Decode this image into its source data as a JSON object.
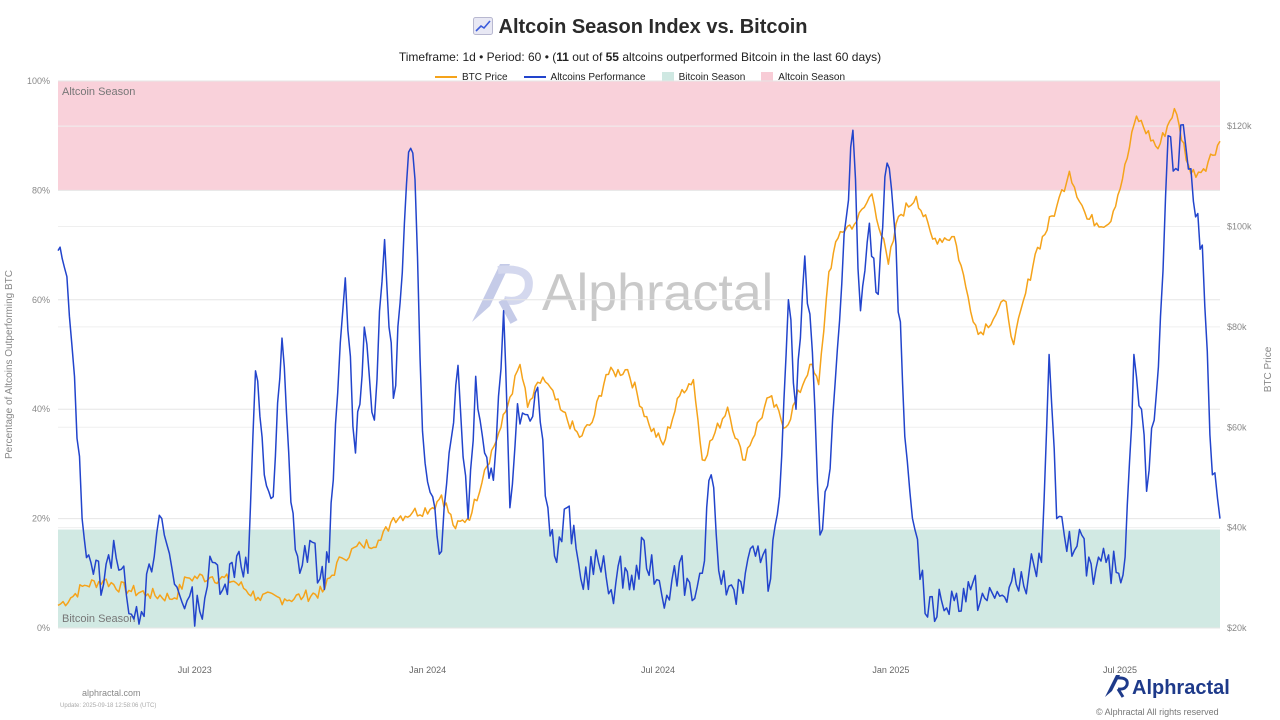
{
  "header": {
    "title": "Altcoin Season Index vs. Bitcoin",
    "subtitle_pre": "Timeframe: 1d  •  Period: 60  •  (",
    "outperformed": "11",
    "subtitle_mid": " out of ",
    "total": "55",
    "subtitle_post": " altcoins outperformed Bitcoin in the last 60 days)"
  },
  "legend": [
    {
      "label": "BTC Price",
      "kind": "line",
      "color": "#f5a31a"
    },
    {
      "label": "Altcoins Performance",
      "kind": "line",
      "color": "#2244cc"
    },
    {
      "label": "Bitcoin Season",
      "kind": "box",
      "color": "#cfe8e2"
    },
    {
      "label": "Altcoin Season",
      "kind": "box",
      "color": "#f8ccd6"
    }
  ],
  "zones": {
    "altcoin_label": "Altcoin Season",
    "bitcoin_label": "Bitcoin Season"
  },
  "footer": {
    "site": "alphractal.com",
    "update": "Update: 2025-09-18 12:58:06 (UTC)",
    "brand": "Alphractal",
    "copyright": "© Alphractal All rights reserved",
    "watermark": "Alphractal"
  },
  "colors": {
    "btc": "#f5a31a",
    "alts": "#2244cc",
    "alt_zone": "#f8ccd6",
    "btc_zone": "#cfe8e2",
    "brand": "#1e3a8a"
  },
  "chart_data": {
    "type": "line",
    "ylabel_left": "Percentage of Altcoins Outperforming BTC",
    "ylabel_right": "BTC Price",
    "y_left_range": [
      0,
      100
    ],
    "y_left_ticks": [
      "0%",
      "20%",
      "40%",
      "60%",
      "80%",
      "100%"
    ],
    "y_right_range": [
      20000,
      129000
    ],
    "y_right_ticks": [
      "$20k",
      "$40k",
      "$60k",
      "$80k",
      "$100k",
      "$120k"
    ],
    "x_range": [
      "2023-03-15",
      "2025-09-18"
    ],
    "x_ticks": [
      {
        "date": "2023-07-01",
        "label": "Jul 2023"
      },
      {
        "date": "2024-01-01",
        "label": "Jan 2024"
      },
      {
        "date": "2024-07-01",
        "label": "Jul 2024"
      },
      {
        "date": "2025-01-01",
        "label": "Jan 2025"
      },
      {
        "date": "2025-07-01",
        "label": "Jul 2025"
      }
    ],
    "bitcoin_season_max": 18,
    "altcoin_season_min": 80,
    "series": [
      {
        "name": "BTC Price",
        "axis": "right",
        "points": [
          [
            "2023-03-15",
            24500
          ],
          [
            "2023-03-25",
            26000
          ],
          [
            "2023-04-05",
            28500
          ],
          [
            "2023-04-20",
            29500
          ],
          [
            "2023-05-10",
            27500
          ],
          [
            "2023-05-25",
            26800
          ],
          [
            "2023-06-15",
            26000
          ],
          [
            "2023-06-25",
            30000
          ],
          [
            "2023-07-15",
            30200
          ],
          [
            "2023-08-01",
            29300
          ],
          [
            "2023-08-20",
            26100
          ],
          [
            "2023-09-10",
            25800
          ],
          [
            "2023-09-25",
            26300
          ],
          [
            "2023-10-10",
            27200
          ],
          [
            "2023-10-25",
            34000
          ],
          [
            "2023-11-10",
            36500
          ],
          [
            "2023-11-25",
            37500
          ],
          [
            "2023-12-05",
            42000
          ],
          [
            "2023-12-20",
            43000
          ],
          [
            "2024-01-05",
            44000
          ],
          [
            "2024-01-12",
            46500
          ],
          [
            "2024-01-23",
            39800
          ],
          [
            "2024-02-05",
            43000
          ],
          [
            "2024-02-15",
            51500
          ],
          [
            "2024-02-28",
            60000
          ],
          [
            "2024-03-06",
            66000
          ],
          [
            "2024-03-14",
            72500
          ],
          [
            "2024-03-20",
            64000
          ],
          [
            "2024-04-01",
            70000
          ],
          [
            "2024-04-15",
            63500
          ],
          [
            "2024-04-30",
            58000
          ],
          [
            "2024-05-10",
            61000
          ],
          [
            "2024-05-21",
            70500
          ],
          [
            "2024-06-07",
            71500
          ],
          [
            "2024-06-24",
            60500
          ],
          [
            "2024-07-05",
            56500
          ],
          [
            "2024-07-20",
            67500
          ],
          [
            "2024-07-29",
            69500
          ],
          [
            "2024-08-05",
            53500
          ],
          [
            "2024-08-25",
            64000
          ],
          [
            "2024-09-06",
            53500
          ],
          [
            "2024-09-27",
            66000
          ],
          [
            "2024-10-10",
            60000
          ],
          [
            "2024-10-29",
            72500
          ],
          [
            "2024-11-05",
            68500
          ],
          [
            "2024-11-13",
            91000
          ],
          [
            "2024-11-22",
            99000
          ],
          [
            "2024-12-05",
            101000
          ],
          [
            "2024-12-17",
            106500
          ],
          [
            "2024-12-30",
            92500
          ],
          [
            "2025-01-07",
            102000
          ],
          [
            "2025-01-21",
            106000
          ],
          [
            "2025-02-03",
            97500
          ],
          [
            "2025-02-20",
            98000
          ],
          [
            "2025-03-03",
            86000
          ],
          [
            "2025-03-11",
            78500
          ],
          [
            "2025-04-02",
            85000
          ],
          [
            "2025-04-08",
            76500
          ],
          [
            "2025-04-25",
            94500
          ],
          [
            "2025-05-12",
            104000
          ],
          [
            "2025-05-22",
            111000
          ],
          [
            "2025-06-05",
            101500
          ],
          [
            "2025-06-22",
            100500
          ],
          [
            "2025-07-03",
            109500
          ],
          [
            "2025-07-14",
            122000
          ],
          [
            "2025-07-31",
            115500
          ],
          [
            "2025-08-13",
            123500
          ],
          [
            "2025-08-26",
            110500
          ],
          [
            "2025-09-05",
            111500
          ],
          [
            "2025-09-18",
            117000
          ]
        ]
      },
      {
        "name": "Altcoins Performance",
        "axis": "left",
        "points": [
          [
            "2023-03-15",
            69
          ],
          [
            "2023-03-20",
            66
          ],
          [
            "2023-03-24",
            57
          ],
          [
            "2023-03-28",
            46
          ],
          [
            "2023-04-03",
            20
          ],
          [
            "2023-04-10",
            12
          ],
          [
            "2023-04-20",
            8
          ],
          [
            "2023-04-28",
            16
          ],
          [
            "2023-05-08",
            6
          ],
          [
            "2023-05-20",
            3
          ],
          [
            "2023-05-30",
            13
          ],
          [
            "2023-06-05",
            20
          ],
          [
            "2023-06-15",
            8
          ],
          [
            "2023-06-25",
            5
          ],
          [
            "2023-07-05",
            3
          ],
          [
            "2023-07-15",
            12
          ],
          [
            "2023-07-25",
            8
          ],
          [
            "2023-08-05",
            14
          ],
          [
            "2023-08-12",
            10
          ],
          [
            "2023-08-18",
            47
          ],
          [
            "2023-08-25",
            28
          ],
          [
            "2023-09-01",
            24
          ],
          [
            "2023-09-08",
            53
          ],
          [
            "2023-09-15",
            23
          ],
          [
            "2023-09-22",
            10
          ],
          [
            "2023-09-30",
            16
          ],
          [
            "2023-10-08",
            9
          ],
          [
            "2023-10-15",
            12
          ],
          [
            "2023-10-22",
            43
          ],
          [
            "2023-10-28",
            64
          ],
          [
            "2023-11-05",
            32
          ],
          [
            "2023-11-12",
            55
          ],
          [
            "2023-11-20",
            38
          ],
          [
            "2023-11-28",
            71
          ],
          [
            "2023-12-05",
            42
          ],
          [
            "2023-12-12",
            65
          ],
          [
            "2023-12-17",
            87
          ],
          [
            "2023-12-22",
            82
          ],
          [
            "2023-12-28",
            36
          ],
          [
            "2024-01-05",
            24
          ],
          [
            "2024-01-12",
            14
          ],
          [
            "2024-01-18",
            32
          ],
          [
            "2024-01-25",
            48
          ],
          [
            "2024-02-02",
            20
          ],
          [
            "2024-02-08",
            46
          ],
          [
            "2024-02-15",
            32
          ],
          [
            "2024-02-22",
            27
          ],
          [
            "2024-03-01",
            58
          ],
          [
            "2024-03-06",
            22
          ],
          [
            "2024-03-12",
            41
          ],
          [
            "2024-03-20",
            39
          ],
          [
            "2024-03-28",
            44
          ],
          [
            "2024-04-05",
            22
          ],
          [
            "2024-04-12",
            12
          ],
          [
            "2024-04-20",
            22
          ],
          [
            "2024-05-01",
            9
          ],
          [
            "2024-05-15",
            12
          ],
          [
            "2024-05-25",
            7
          ],
          [
            "2024-06-05",
            11
          ],
          [
            "2024-06-12",
            7
          ],
          [
            "2024-06-20",
            16
          ],
          [
            "2024-06-28",
            8
          ],
          [
            "2024-07-08",
            6
          ],
          [
            "2024-07-18",
            12
          ],
          [
            "2024-07-28",
            5
          ],
          [
            "2024-08-05",
            10
          ],
          [
            "2024-08-12",
            28
          ],
          [
            "2024-08-20",
            8
          ],
          [
            "2024-08-30",
            7
          ],
          [
            "2024-09-08",
            10
          ],
          [
            "2024-09-18",
            15
          ],
          [
            "2024-09-28",
            9
          ],
          [
            "2024-10-05",
            24
          ],
          [
            "2024-10-12",
            60
          ],
          [
            "2024-10-18",
            40
          ],
          [
            "2024-10-25",
            68
          ],
          [
            "2024-11-02",
            40
          ],
          [
            "2024-11-06",
            17
          ],
          [
            "2024-11-12",
            26
          ],
          [
            "2024-11-18",
            45
          ],
          [
            "2024-11-25",
            72
          ],
          [
            "2024-12-02",
            91
          ],
          [
            "2024-12-08",
            58
          ],
          [
            "2024-12-15",
            74
          ],
          [
            "2024-12-22",
            61
          ],
          [
            "2024-12-29",
            85
          ],
          [
            "2025-01-05",
            70
          ],
          [
            "2025-01-12",
            35
          ],
          [
            "2025-01-20",
            18
          ],
          [
            "2025-01-30",
            2
          ],
          [
            "2025-02-10",
            5
          ],
          [
            "2025-02-20",
            5
          ],
          [
            "2025-03-05",
            7
          ],
          [
            "2025-03-18",
            5
          ],
          [
            "2025-03-30",
            6
          ],
          [
            "2025-04-10",
            8
          ],
          [
            "2025-04-20",
            10
          ],
          [
            "2025-04-30",
            12
          ],
          [
            "2025-05-06",
            50
          ],
          [
            "2025-05-12",
            20
          ],
          [
            "2025-05-20",
            14
          ],
          [
            "2025-05-30",
            18
          ],
          [
            "2025-06-10",
            8
          ],
          [
            "2025-06-20",
            12
          ],
          [
            "2025-06-30",
            10
          ],
          [
            "2025-07-05",
            13
          ],
          [
            "2025-07-12",
            50
          ],
          [
            "2025-07-18",
            40
          ],
          [
            "2025-07-22",
            25
          ],
          [
            "2025-07-28",
            38
          ],
          [
            "2025-08-02",
            57
          ],
          [
            "2025-08-08",
            90
          ],
          [
            "2025-08-14",
            84
          ],
          [
            "2025-08-20",
            92
          ],
          [
            "2025-08-28",
            78
          ],
          [
            "2025-09-04",
            70
          ],
          [
            "2025-09-12",
            28
          ],
          [
            "2025-09-18",
            20
          ]
        ]
      }
    ]
  }
}
